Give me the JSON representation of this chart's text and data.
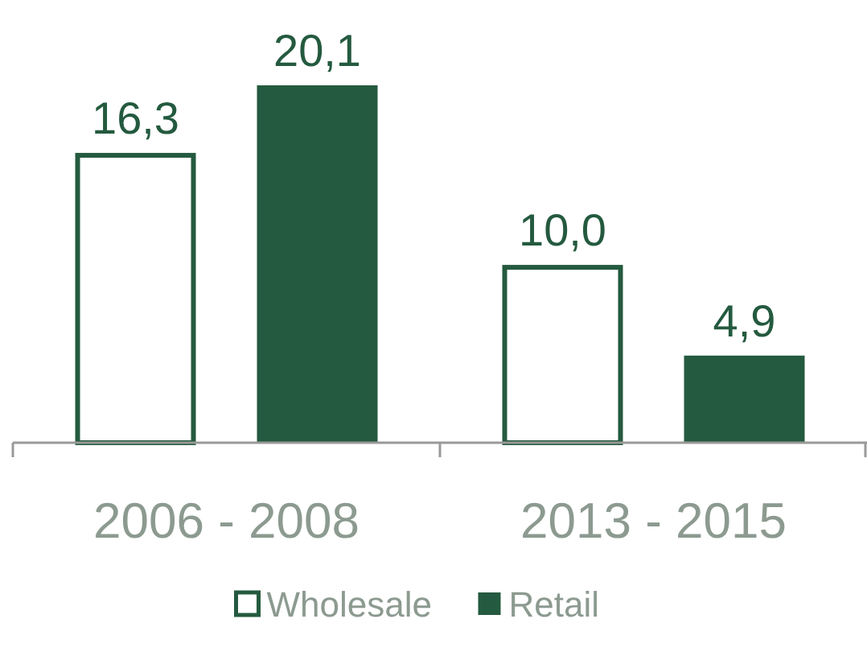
{
  "chart_data": {
    "type": "bar",
    "categories": [
      "2006 - 2008",
      "2013 - 2015"
    ],
    "series": [
      {
        "name": "Wholesale",
        "color": "#ffffff",
        "values": [
          16.3,
          10.0
        ],
        "value_labels": [
          "16,3",
          "10,0"
        ]
      },
      {
        "name": "Retail",
        "color": "#245a3f",
        "values": [
          20.1,
          4.9
        ],
        "value_labels": [
          "20,1",
          "4,9"
        ]
      }
    ],
    "legend": "bottom"
  }
}
